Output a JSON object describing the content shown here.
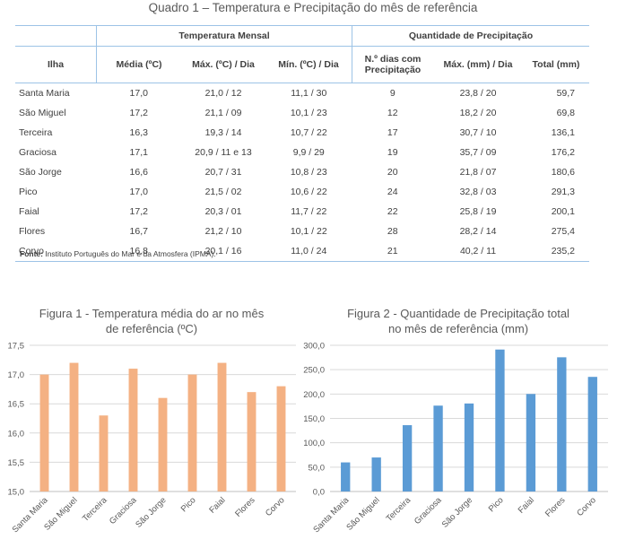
{
  "table": {
    "title": "Quadro 1 – Temperatura e Precipitação do mês de referência",
    "group_headers": [
      "Temperatura Mensal",
      "Quantidade de Precipitação"
    ],
    "col_headers": [
      "Ilha",
      "Média (ºC)",
      "Máx. (ºC) / Dia",
      "Mín. (ºC) / Dia",
      "N.º dias com Precipitação",
      "Máx. (mm) / Dia",
      "Total (mm)"
    ],
    "rows": [
      [
        "Santa Maria",
        "17,0",
        "21,0 / 12",
        "11,1 / 30",
        "9",
        "23,8 / 20",
        "59,7"
      ],
      [
        "São Miguel",
        "17,2",
        "21,1 / 09",
        "10,1 / 23",
        "12",
        "18,2 / 20",
        "69,8"
      ],
      [
        "Terceira",
        "16,3",
        "19,3 / 14",
        "10,7 / 22",
        "17",
        "30,7 / 10",
        "136,1"
      ],
      [
        "Graciosa",
        "17,1",
        "20,9 / 11 e 13",
        "9,9 / 29",
        "19",
        "35,7 / 09",
        "176,2"
      ],
      [
        "São Jorge",
        "16,6",
        "20,7 / 31",
        "10,8 / 23",
        "20",
        "21,8 / 07",
        "180,6"
      ],
      [
        "Pico",
        "17,0",
        "21,5 / 02",
        "10,6 / 22",
        "24",
        "32,8 / 03",
        "291,3"
      ],
      [
        "Faial",
        "17,2",
        "20,3 / 01",
        "11,7 / 22",
        "22",
        "25,8 / 19",
        "200,1"
      ],
      [
        "Flores",
        "16,7",
        "21,2 / 10",
        "10,1 / 22",
        "28",
        "28,2 / 14",
        "275,4"
      ],
      [
        "Corvo",
        "16,8",
        "20,1 / 16",
        "11,0 / 24",
        "21",
        "40,2 / 11",
        "235,2"
      ]
    ],
    "source_label": "Fonte:",
    "source_text": "Instituto Português do Mar e da Atmosfera (IPMA)."
  },
  "chart_data": [
    {
      "type": "bar",
      "title_line1": "Figura 1 - Temperatura média do ar no mês",
      "title_line2": "de referência  (ºC)",
      "categories": [
        "Santa Maria",
        "São Miguel",
        "Terceira",
        "Graciosa",
        "São Jorge",
        "Pico",
        "Faial",
        "Flores",
        "Corvo"
      ],
      "values": [
        17.0,
        17.2,
        16.3,
        17.1,
        16.6,
        17.0,
        17.2,
        16.7,
        16.8
      ],
      "ylim": [
        15.0,
        17.5
      ],
      "yticks": [
        "15,0",
        "15,5",
        "16,0",
        "16,5",
        "17,0",
        "17,5"
      ],
      "color": "#f4b183",
      "grid": true
    },
    {
      "type": "bar",
      "title_line1": "Figura 2 - Quantidade de Precipitação total",
      "title_line2": "no mês de referência (mm)",
      "categories": [
        "Santa Maria",
        "São Miguel",
        "Terceira",
        "Graciosa",
        "São Jorge",
        "Pico",
        "Faial",
        "Flores",
        "Corvo"
      ],
      "values": [
        59.7,
        69.8,
        136.1,
        176.2,
        180.6,
        291.3,
        200.1,
        275.4,
        235.2
      ],
      "ylim": [
        0,
        300
      ],
      "yticks": [
        "0,0",
        "50,0",
        "100,0",
        "150,0",
        "200,0",
        "250,0",
        "300,0"
      ],
      "color": "#5b9bd5",
      "grid": true
    }
  ]
}
